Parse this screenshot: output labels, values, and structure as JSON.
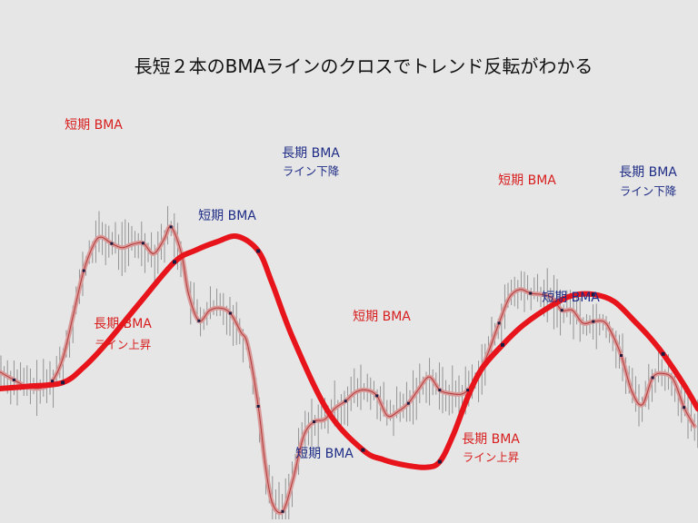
{
  "chart_data": {
    "type": "line",
    "title": "長短２本のBMAラインのクロスでトレンド反転がわかる",
    "xlabel": "",
    "ylabel": "",
    "xlim": [
      0,
      100
    ],
    "ylim": [
      0,
      100
    ],
    "grid": false,
    "colors": {
      "long": "#e8141b",
      "short_line": "#d99a9a",
      "short_core": "#b43a3a",
      "price_bar": "#8a8a8a",
      "red_label": "#d81e1e",
      "blue_label": "#1f2d86"
    },
    "series": [
      {
        "key": "long_bma",
        "x": [
          0,
          4,
          9,
          12,
          15,
          20,
          25,
          28,
          31,
          34,
          37,
          39,
          42,
          47,
          52,
          55,
          58,
          61,
          63,
          65,
          67,
          69,
          72,
          75,
          79,
          82,
          85,
          88,
          91,
          93,
          95,
          98,
          100
        ],
        "values": [
          33.5,
          34.1,
          35.1,
          39.2,
          45.0,
          56.2,
          67.1,
          70.2,
          72.4,
          73.9,
          70.0,
          61.4,
          46.7,
          27.4,
          17.2,
          14.6,
          13.2,
          12.6,
          14.1,
          21.5,
          31.2,
          38.7,
          45.1,
          50.4,
          55.5,
          58.2,
          58.5,
          56.6,
          51.2,
          47.3,
          42.7,
          34.5,
          28.1
        ]
      },
      {
        "key": "short_bma",
        "x": [
          0,
          2,
          4,
          6,
          7.5,
          9,
          10.5,
          12,
          13.5,
          14.5,
          16,
          17.5,
          19,
          20.5,
          22,
          23.5,
          24.5,
          26,
          27,
          28.5,
          30,
          31.5,
          33,
          34.5,
          35.5,
          37,
          38,
          39,
          40.5,
          42,
          43.5,
          45,
          46.5,
          48,
          49.5,
          51,
          52.5,
          54,
          55.5,
          57,
          58.5,
          60,
          61.5,
          63,
          64.5,
          66,
          67,
          68.5,
          70,
          71.5,
          73,
          74.5,
          76,
          77.5,
          79,
          80.5,
          82,
          83.5,
          85,
          86.5,
          87.5,
          89,
          90.5,
          92,
          93.5,
          95,
          96.5,
          98,
          99.5
        ],
        "values": [
          37.9,
          35.8,
          33.9,
          33.7,
          35.5,
          41.5,
          53.0,
          64.8,
          72.0,
          73.7,
          72.0,
          70.9,
          71.8,
          72.1,
          69.3,
          73.1,
          76.4,
          69.3,
          58.7,
          51.5,
          54.2,
          54.9,
          53.5,
          48.5,
          45.0,
          28.8,
          13.5,
          3.2,
          0.9,
          9.6,
          20.9,
          24.7,
          25.3,
          28.3,
          30.2,
          32.6,
          33.1,
          31.6,
          26.3,
          27.4,
          29.6,
          33.4,
          36.6,
          33.1,
          32.2,
          32.0,
          33.1,
          36.8,
          43.3,
          50.9,
          57.7,
          59.8,
          58.8,
          58.5,
          57.7,
          54.3,
          54.3,
          50.9,
          51.3,
          51.3,
          48.7,
          42.3,
          32.9,
          29.2,
          36.4,
          37.5,
          35.8,
          28.5,
          23.5
        ]
      }
    ],
    "annotations": [
      {
        "text": "短期 BMA",
        "color": "red"
      },
      {
        "text": "長期 BMA",
        "color": "blue"
      },
      {
        "text": "ライン下降",
        "color": "blue"
      },
      {
        "text": "短期 BMA",
        "color": "blue"
      },
      {
        "text": "長期 BMA",
        "color": "red"
      },
      {
        "text": "ライン上昇",
        "color": "red"
      },
      {
        "text": "短期 BMA",
        "color": "red"
      },
      {
        "text": "短期 BMA",
        "color": "blue"
      },
      {
        "text": "長期 BMA",
        "color": "red"
      },
      {
        "text": "ライン上昇",
        "color": "red"
      },
      {
        "text": "短期 BMA",
        "color": "red"
      },
      {
        "text": "長期 BMA",
        "color": "blue"
      },
      {
        "text": "ライン下降",
        "color": "blue"
      },
      {
        "text": "短期 BMA",
        "color": "blue"
      }
    ]
  }
}
